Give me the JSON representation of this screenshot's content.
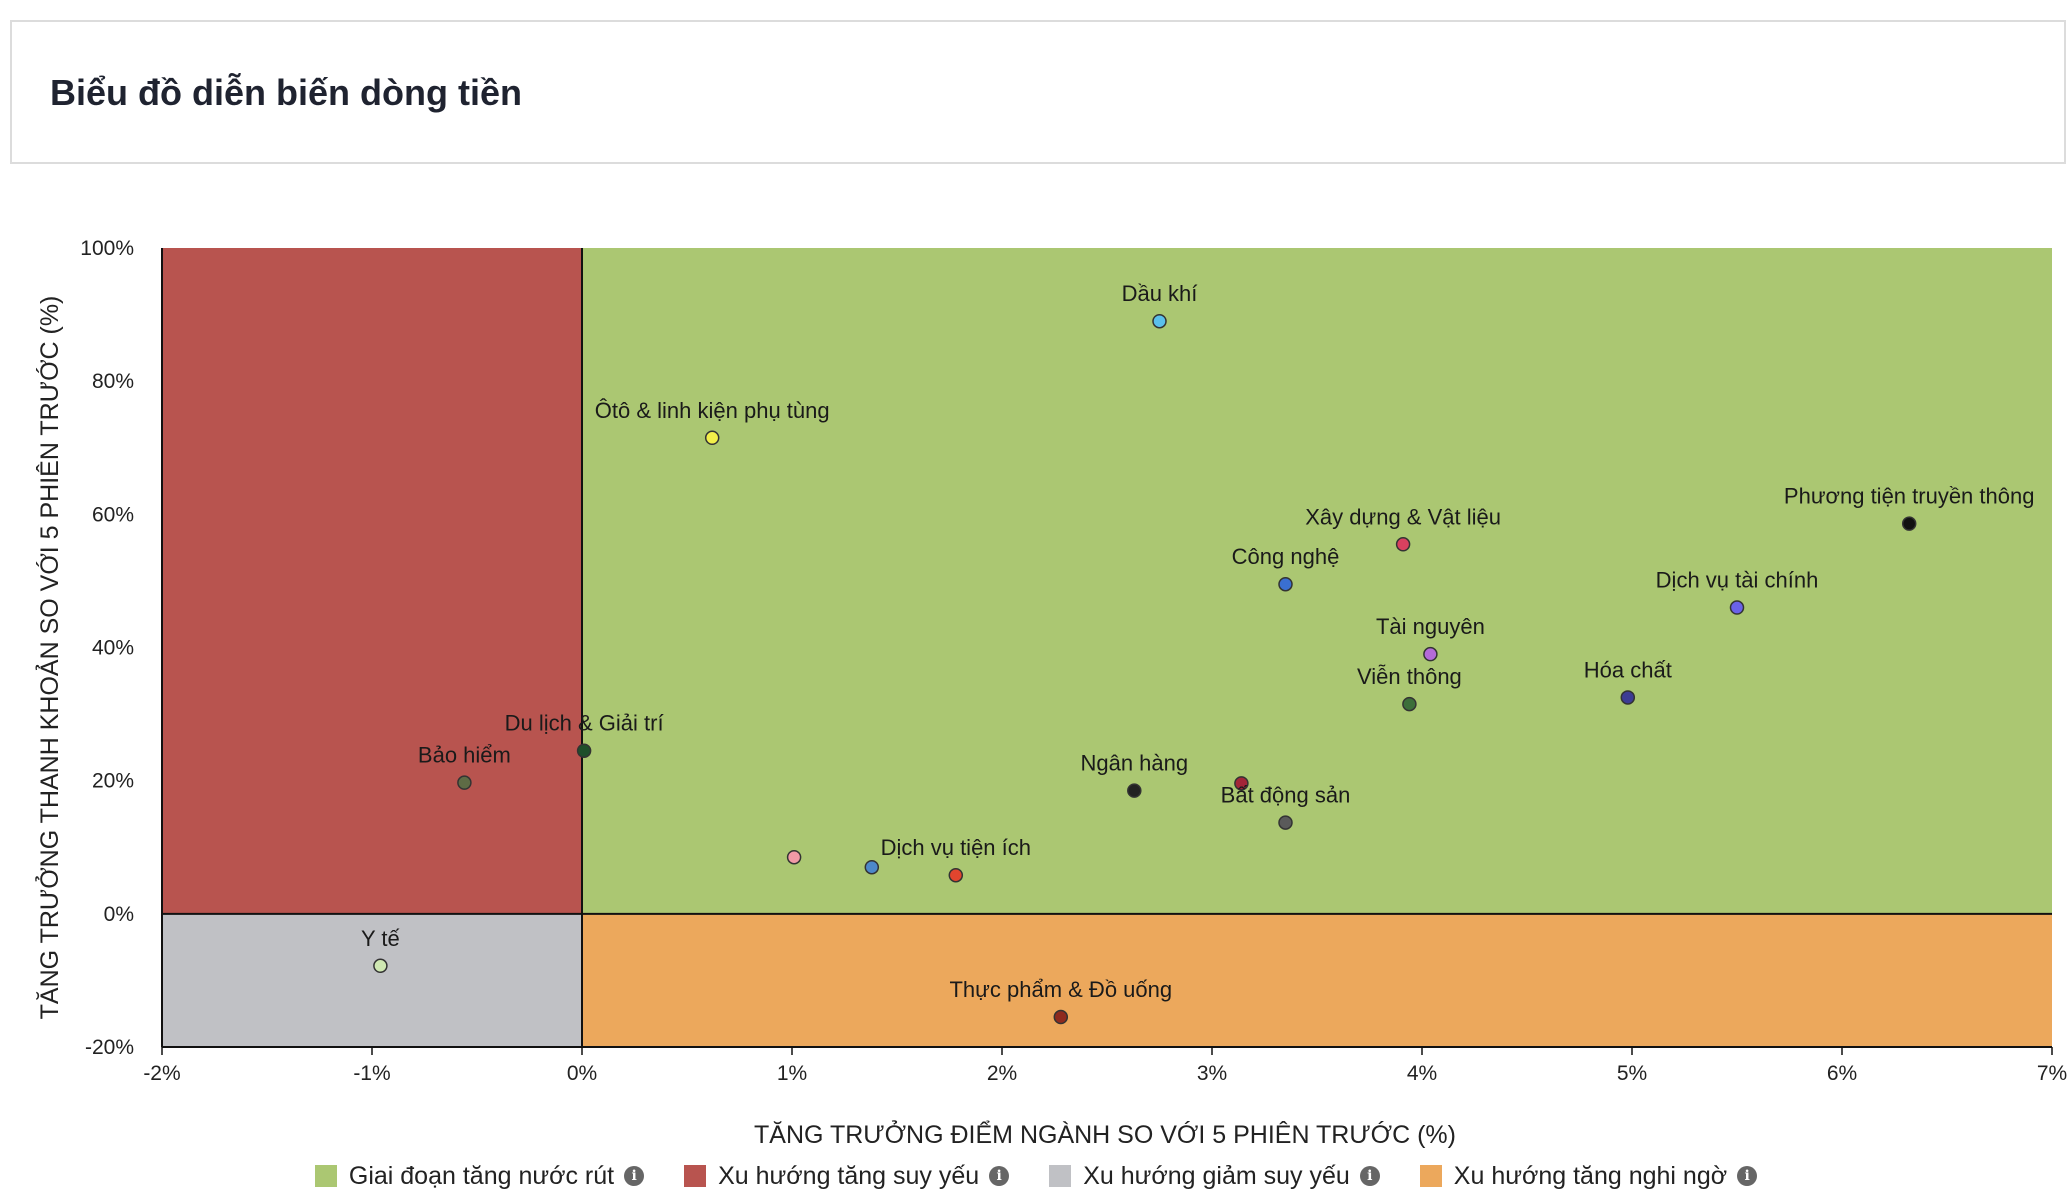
{
  "header": {
    "title": "Biểu đồ diễn biến dòng tiền"
  },
  "chart_data": {
    "type": "scatter",
    "xlabel": "TĂNG TRƯỞNG ĐIỂM NGÀNH SO VỚI 5 PHIÊN TRƯỚC (%)",
    "ylabel": "TĂNG TRƯỞNG THANH KHOẢN SO VỚI 5 PHIÊN TRƯỚC (%)",
    "xlim": [
      -2,
      7
    ],
    "ylim": [
      -20,
      100
    ],
    "xticks": [
      -2,
      -1,
      0,
      1,
      2,
      3,
      4,
      5,
      6,
      7
    ],
    "xtick_labels": [
      "-2%",
      "-1%",
      "0%",
      "1%",
      "2%",
      "3%",
      "4%",
      "5%",
      "6%",
      "7%"
    ],
    "yticks": [
      -20,
      0,
      20,
      40,
      60,
      80,
      100
    ],
    "ytick_labels": [
      "-20%",
      "0%",
      "20%",
      "40%",
      "60%",
      "80%",
      "100%"
    ],
    "quadrants": [
      {
        "name": "Giai đoạn tăng nước rút",
        "color": "#abc772"
      },
      {
        "name": "Xu hướng tăng suy yếu",
        "color": "#b8544f"
      },
      {
        "name": "Xu hướng giảm suy yếu",
        "color": "#c0c1c5"
      },
      {
        "name": "Xu hướng tăng nghi ngờ",
        "color": "#eca85c"
      }
    ],
    "points": [
      {
        "label": "Dầu khí",
        "x": 2.75,
        "y": 89,
        "color": "#5bc0eb"
      },
      {
        "label": "Ôtô & linh kiện phụ tùng",
        "x": 0.62,
        "y": 71.5,
        "color": "#f2ef4a"
      },
      {
        "label": "Phương tiện truyền thông",
        "x": 6.32,
        "y": 58.6,
        "color": "#111111"
      },
      {
        "label": "Xây dựng & Vật liệu",
        "x": 3.91,
        "y": 55.5,
        "color": "#d9415f"
      },
      {
        "label": "Công nghệ",
        "x": 3.35,
        "y": 49.5,
        "color": "#3a6fd1"
      },
      {
        "label": "Dịch vụ tài chính",
        "x": 5.5,
        "y": 46,
        "color": "#6a62e8"
      },
      {
        "label": "Tài nguyên",
        "x": 4.04,
        "y": 39,
        "color": "#b46bd8"
      },
      {
        "label": "Hóa chất",
        "x": 4.98,
        "y": 32.5,
        "color": "#3d3c94"
      },
      {
        "label": "Viễn thông",
        "x": 3.94,
        "y": 31.5,
        "color": "#3c6e3a"
      },
      {
        "label": "Du lịch & Giải trí",
        "x": 0.01,
        "y": 24.5,
        "color": "#1f4f2a"
      },
      {
        "label": "Bảo hiểm",
        "x": -0.56,
        "y": 19.7,
        "color": "#5e6b45"
      },
      {
        "label": "Ngân hàng",
        "x": 2.63,
        "y": 18.5,
        "color": "#222222"
      },
      {
        "label": "",
        "x": 3.14,
        "y": 19.6,
        "color": "#a32638"
      },
      {
        "label": "Bất động sản",
        "x": 3.35,
        "y": 13.7,
        "color": "#5a5a5a"
      },
      {
        "label": "",
        "x": 1.01,
        "y": 8.5,
        "color": "#f19aa6"
      },
      {
        "label": "",
        "x": 1.38,
        "y": 7,
        "color": "#4d88c9"
      },
      {
        "label": "Dịch vụ tiện ích",
        "x": 1.78,
        "y": 5.8,
        "color": "#e2452e"
      },
      {
        "label": "Y tế",
        "x": -0.96,
        "y": -7.8,
        "color": "#cfe8b2"
      },
      {
        "label": "Thực phẩm & Đồ uống",
        "x": 2.28,
        "y": -15.5,
        "color": "#8e2a1e"
      }
    ]
  }
}
